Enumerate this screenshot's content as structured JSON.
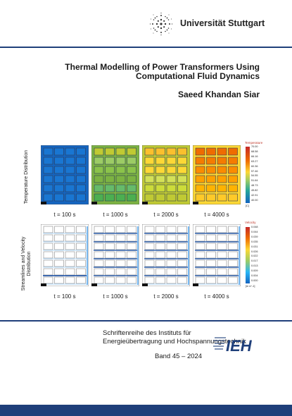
{
  "header": {
    "university": "Universität Stuttgart"
  },
  "cover": {
    "title_line1": "Thermal Modelling of Power Transformers Using",
    "title_line2": "Computational Fluid Dynamics",
    "author": "Saeed Khandan Siar"
  },
  "figure": {
    "temperature_label": "Temperature Distribution",
    "velocity_label_line1": "Streamlines and Velocity",
    "velocity_label_line2": "Distribution",
    "times_top": [
      "t = 100 s",
      "t = 1000 s",
      "t = 2000 s",
      "t = 4000 s"
    ],
    "times_bottom": [
      "t = 100 s",
      "t = 1000 s",
      "t = 2000 s",
      "t = 4000 s"
    ],
    "temp_legend": {
      "title": "Temperature",
      "ticks": [
        "70.00",
        "68.58",
        "66.16",
        "63.27",
        "60.36",
        "57.46",
        "54.55",
        "51.64",
        "48.73",
        "45.82",
        "42.91",
        "40.00"
      ],
      "unit": "[C]"
    },
    "vel_legend": {
      "title": "Velocity",
      "ticks": [
        "0.048",
        "0.044",
        "0.039",
        "0.035",
        "0.031",
        "0.026",
        "0.022",
        "0.017",
        "0.013",
        "0.009",
        "0.004",
        "0.000"
      ],
      "unit": "[m s^-1]"
    },
    "colors": {
      "cold": "#1565c0",
      "warm": "#f9a825",
      "hot": "#e65100"
    }
  },
  "series": {
    "line1": "Schriftenreihe des Instituts für",
    "line2": "Energieübertragung und Hochspannungstechnik",
    "band": "Band 45 – 2024",
    "logo_text": "IEH"
  }
}
